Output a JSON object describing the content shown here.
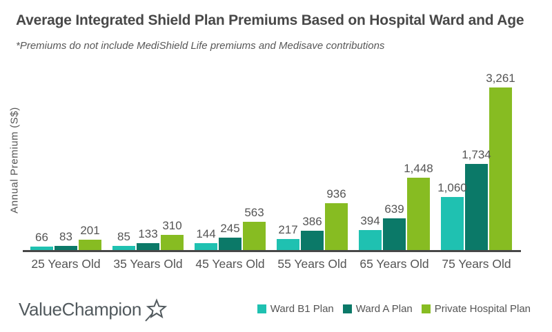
{
  "header": {
    "title": "Average Integrated Shield Plan Premiums Based on Hospital Ward and Age",
    "subtitle": "*Premiums do not include MediShield Life premiums and Medisave contributions"
  },
  "chart_data": {
    "type": "bar",
    "title": "Average Integrated Shield Plan Premiums Based on Hospital Ward and Age",
    "xlabel": "",
    "ylabel": "Annual Premium (S$)",
    "categories": [
      "25 Years Old",
      "35 Years Old",
      "45 Years Old",
      "55 Years Old",
      "65 Years Old",
      "75 Years Old"
    ],
    "series": [
      {
        "name": "Ward B1 Plan",
        "color": "#1fc1b1",
        "values": [
          66,
          85,
          144,
          217,
          394,
          1060
        ]
      },
      {
        "name": "Ward A Plan",
        "color": "#0b7968",
        "values": [
          83,
          133,
          245,
          386,
          639,
          1734
        ]
      },
      {
        "name": "Private Hospital Plan",
        "color": "#87bc22",
        "values": [
          201,
          310,
          563,
          936,
          1448,
          3261
        ]
      }
    ],
    "ylim": [
      0,
      3261
    ],
    "grid": false,
    "value_labels": true,
    "legend_position": "bottom-right",
    "axis_color": "#474747",
    "label_color": "#545454"
  },
  "footer": {
    "logo_text": "ValueChampion"
  }
}
